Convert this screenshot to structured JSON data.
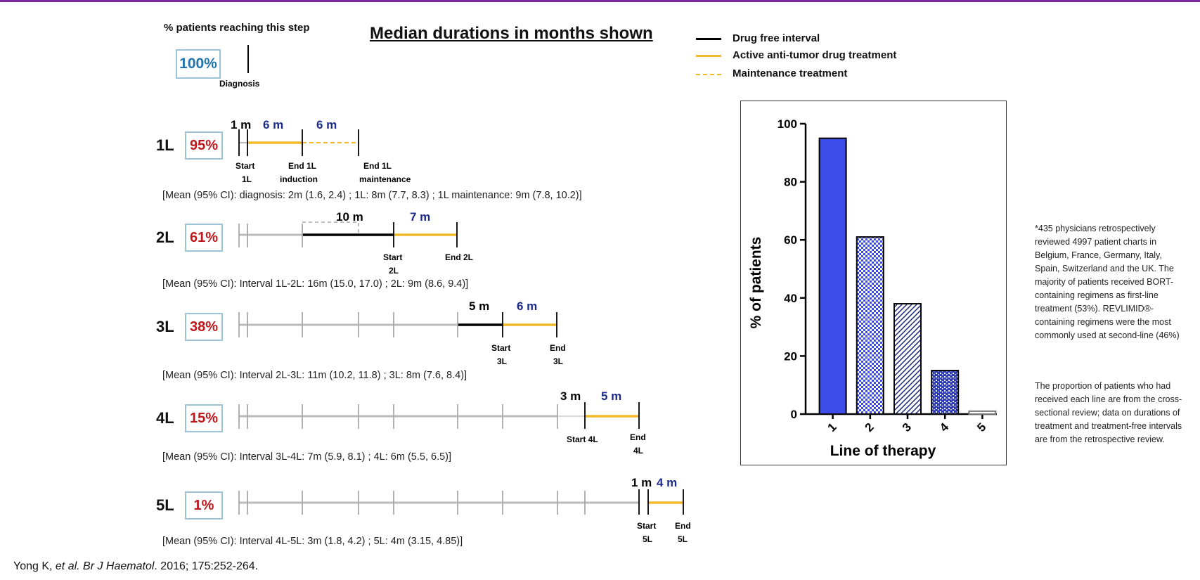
{
  "header": {
    "percent_header": "% patients reaching this step",
    "title": "Median durations in months shown"
  },
  "legend": {
    "drug_free": "Drug free interval",
    "active": "Active anti-tumor drug treatment",
    "maintenance": "Maintenance treatment",
    "colors": {
      "drug_free": "#000000",
      "active": "#f2b92a",
      "maintenance": "#f2b92a"
    }
  },
  "timeline": {
    "diagnosis": {
      "percent": "100%",
      "label": "Diagnosis"
    },
    "rows": [
      {
        "line": "1L",
        "percent": "95%",
        "durations": [
          "1 m",
          "6 m",
          "6 m"
        ],
        "marks": [
          "Start 1L",
          "End 1L induction",
          "End 1L maintenance"
        ],
        "ci": "[Mean (95% CI): diagnosis: 2m (1.6, 2.4) ;  1L: 8m (7.7, 8.3) ; 1L maintenance: 9m (7.8, 10.2)]"
      },
      {
        "line": "2L",
        "percent": "61%",
        "durations": [
          "10 m",
          "7 m"
        ],
        "marks": [
          "Start 2L",
          "End 2L"
        ],
        "ci": "[Mean (95% CI): Interval 1L-2L: 16m (15.0, 17.0) ; 2L: 9m (8.6, 9.4)]"
      },
      {
        "line": "3L",
        "percent": "38%",
        "durations": [
          "5 m",
          "6 m"
        ],
        "marks": [
          "Start 3L",
          "End 3L"
        ],
        "ci": "[Mean (95% CI): Interval 2L-3L: 11m (10.2, 11.8) ; 3L: 8m (7.6, 8.4)]"
      },
      {
        "line": "4L",
        "percent": "15%",
        "durations": [
          "3 m",
          "5 m"
        ],
        "marks": [
          "Start 4L",
          "End 4L"
        ],
        "ci": "[Mean (95% CI): Interval 3L-4L: 7m (5.9, 8.1) ; 4L: 6m (5.5, 6.5)]"
      },
      {
        "line": "5L",
        "percent": "1%",
        "durations": [
          "1 m",
          "4 m"
        ],
        "marks": [
          "Start 5L",
          "End 5L"
        ],
        "ci": "[Mean (95% CI): Interval 4L-5L: 3m (1.8, 4.2) ; 5L: 4m (3.15, 4.85)]"
      }
    ]
  },
  "chart_data": {
    "type": "bar",
    "categories": [
      "1",
      "2",
      "3",
      "4",
      "5"
    ],
    "values": [
      95,
      61,
      38,
      15,
      1
    ],
    "xlabel": "Line of therapy",
    "ylabel": "% of patients",
    "ylim": [
      0,
      100
    ],
    "yticks": [
      "0",
      "20",
      "40",
      "60",
      "80",
      "100"
    ],
    "bar_fills": [
      "solid",
      "checker",
      "diagonal",
      "brick",
      "empty"
    ],
    "bar_color": "#3b4ce8",
    "grid": false
  },
  "notes": {
    "p1": "*435 physicians retrospectively reviewed 4997 patient charts in Belgium, France, Germany, Italy, Spain, Switzerland and the UK. The majority of patients received BORT-containing regimens as first-line treatment (53%). REVLIMID®-containing regimens were the most commonly used at second-line (46%)",
    "p2": "The proportion of patients who had received each line are from the cross-sectional review; data on durations of treatment and treatment-free intervals are from the retrospective review."
  },
  "citation": {
    "authors": "Yong K, ",
    "etal": "et al. Br J Haematol",
    "rest": ". 2016; 175:252-264."
  }
}
